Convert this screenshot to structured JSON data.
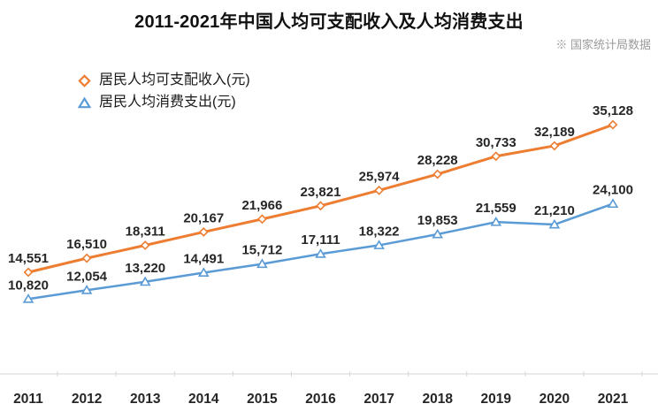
{
  "source_note": "※ 国家统计局数据",
  "chart_data": {
    "type": "line",
    "title": "2011-2021年中国人均可支配收入及人均消费支出",
    "categories": [
      "2011",
      "2012",
      "2013",
      "2014",
      "2015",
      "2016",
      "2017",
      "2018",
      "2019",
      "2020",
      "2021"
    ],
    "series": [
      {
        "name": "居民人均可支配收入(元)",
        "color": "#ED7D31",
        "marker": "diamond",
        "values": [
          14551,
          16510,
          18311,
          20167,
          21966,
          23821,
          25974,
          28228,
          30733,
          32189,
          35128
        ]
      },
      {
        "name": "居民人均消费支出(元)",
        "color": "#5B9BD5",
        "marker": "triangle",
        "values": [
          10820,
          12054,
          13220,
          14491,
          15712,
          17111,
          18322,
          19853,
          21559,
          21210,
          24100
        ]
      }
    ],
    "xlabel": "",
    "ylabel": "",
    "legend_position": "top-left",
    "grid": false,
    "data_labels": true,
    "number_format": "thousands-comma",
    "axis_color": "#d6d6d6"
  }
}
